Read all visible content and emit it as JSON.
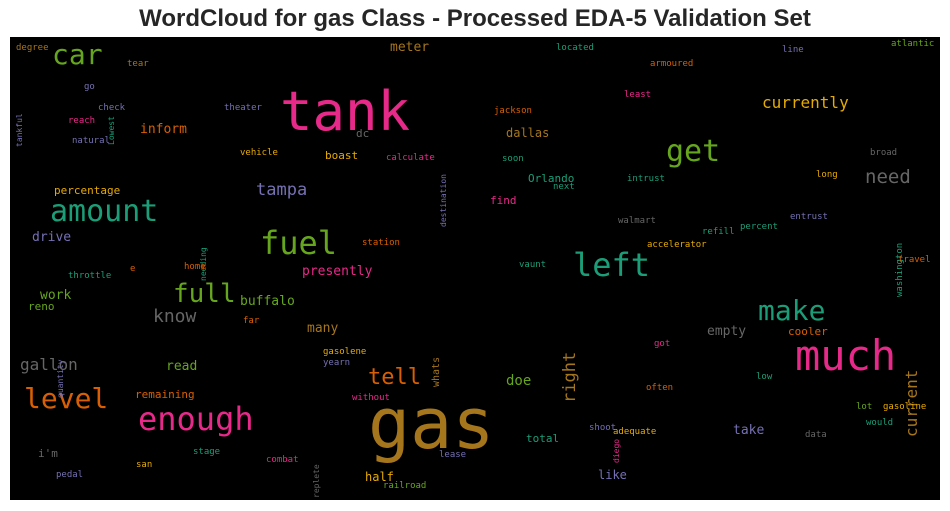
{
  "title": "WordCloud for gas Class - Processed EDA-5 Validation Set",
  "colors": {
    "background": "#000000",
    "title_text": "#262626",
    "pink": "#e7298a",
    "ochre": "#a6761d",
    "green": "#66a61e",
    "teal": "#1b9e77",
    "orange": "#d95f02",
    "purple": "#7570b3",
    "gold": "#e6ab02",
    "gray": "#666666"
  },
  "words": [
    {
      "text": "tank",
      "color": "#e7298a"
    },
    {
      "text": "gas",
      "color": "#a6761d"
    },
    {
      "text": "much",
      "color": "#e7298a"
    },
    {
      "text": "fuel",
      "color": "#66a61e"
    },
    {
      "text": "left",
      "color": "#1b9e77"
    },
    {
      "text": "enough",
      "color": "#e7298a"
    },
    {
      "text": "amount",
      "color": "#1b9e77"
    },
    {
      "text": "level",
      "color": "#d95f02"
    },
    {
      "text": "car",
      "color": "#66a61e"
    },
    {
      "text": "get",
      "color": "#66a61e"
    },
    {
      "text": "make",
      "color": "#1b9e77"
    },
    {
      "text": "full",
      "color": "#66a61e"
    },
    {
      "text": "tell",
      "color": "#d95f02"
    },
    {
      "text": "need",
      "color": "#666666"
    },
    {
      "text": "currently",
      "color": "#e6ab02"
    },
    {
      "text": "current",
      "color": "#a6761d"
    },
    {
      "text": "right",
      "color": "#a6761d"
    },
    {
      "text": "know",
      "color": "#666666"
    },
    {
      "text": "gallon",
      "color": "#666666"
    },
    {
      "text": "tampa",
      "color": "#7570b3"
    },
    {
      "text": "inform",
      "color": "#d95f02"
    },
    {
      "text": "meter",
      "color": "#a6761d"
    },
    {
      "text": "presently",
      "color": "#e7298a"
    },
    {
      "text": "doe",
      "color": "#66a61e"
    },
    {
      "text": "read",
      "color": "#66a61e"
    },
    {
      "text": "drive",
      "color": "#7570b3"
    },
    {
      "text": "work",
      "color": "#66a61e"
    },
    {
      "text": "many",
      "color": "#a6761d"
    },
    {
      "text": "empty",
      "color": "#666666"
    },
    {
      "text": "take",
      "color": "#7570b3"
    },
    {
      "text": "buffalo",
      "color": "#66a61e"
    },
    {
      "text": "dallas",
      "color": "#a6761d"
    },
    {
      "text": "boast",
      "color": "#e6ab02"
    },
    {
      "text": "percentage",
      "color": "#e6ab02"
    },
    {
      "text": "cooler",
      "color": "#d95f02"
    },
    {
      "text": "Orlando",
      "color": "#1b9e77"
    },
    {
      "text": "find",
      "color": "#e7298a"
    },
    {
      "text": "remaining",
      "color": "#d95f02"
    },
    {
      "text": "half",
      "color": "#e6ab02"
    },
    {
      "text": "total",
      "color": "#1b9e77"
    },
    {
      "text": "like",
      "color": "#7570b3"
    },
    {
      "text": "i'm",
      "color": "#666666"
    },
    {
      "text": "dc",
      "color": "#666666"
    },
    {
      "text": "reno",
      "color": "#66a61e"
    },
    {
      "text": "whats",
      "color": "#a6761d"
    },
    {
      "text": "degree",
      "color": "#a6761d"
    },
    {
      "text": "tear",
      "color": "#a6761d"
    },
    {
      "text": "located",
      "color": "#1b9e77"
    },
    {
      "text": "line",
      "color": "#7570b3"
    },
    {
      "text": "atlantic",
      "color": "#66a61e"
    },
    {
      "text": "armoured",
      "color": "#d95f02"
    },
    {
      "text": "go",
      "color": "#7570b3"
    },
    {
      "text": "Lowest",
      "color": "#1b9e77"
    },
    {
      "text": "tankful",
      "color": "#7570b3"
    },
    {
      "text": "check",
      "color": "#7570b3"
    },
    {
      "text": "theater",
      "color": "#7570b3"
    },
    {
      "text": "least",
      "color": "#e7298a"
    },
    {
      "text": "jackson",
      "color": "#d95f02"
    },
    {
      "text": "reach",
      "color": "#e7298a"
    },
    {
      "text": "natural",
      "color": "#7570b3"
    },
    {
      "text": "destination",
      "color": "#7570b3"
    },
    {
      "text": "vehicle",
      "color": "#e6ab02"
    },
    {
      "text": "calculate",
      "color": "#e7298a"
    },
    {
      "text": "soon",
      "color": "#1b9e77"
    },
    {
      "text": "broad",
      "color": "#666666"
    },
    {
      "text": "long",
      "color": "#e6ab02"
    },
    {
      "text": "next",
      "color": "#1b9e77"
    },
    {
      "text": "intrust",
      "color": "#1b9e77"
    },
    {
      "text": "needing",
      "color": "#1b9e77"
    },
    {
      "text": "walmart",
      "color": "#666666"
    },
    {
      "text": "washington",
      "color": "#1b9e77"
    },
    {
      "text": "entrust",
      "color": "#7570b3"
    },
    {
      "text": "percent",
      "color": "#1b9e77"
    },
    {
      "text": "refill",
      "color": "#1b9e77"
    },
    {
      "text": "station",
      "color": "#d95f02"
    },
    {
      "text": "accelerator",
      "color": "#e6ab02"
    },
    {
      "text": "throttle",
      "color": "#1b9e77"
    },
    {
      "text": "e",
      "color": "#d95f02"
    },
    {
      "text": "home",
      "color": "#d95f02"
    },
    {
      "text": "vaunt",
      "color": "#1b9e77"
    },
    {
      "text": "travel",
      "color": "#d95f02"
    },
    {
      "text": "far",
      "color": "#d95f02"
    },
    {
      "text": "quantity",
      "color": "#7570b3"
    },
    {
      "text": "got",
      "color": "#e7298a"
    },
    {
      "text": "gasolene",
      "color": "#e6ab02"
    },
    {
      "text": "yearn",
      "color": "#7570b3"
    },
    {
      "text": "low",
      "color": "#1b9e77"
    },
    {
      "text": "often",
      "color": "#d95f02"
    },
    {
      "text": "diego",
      "color": "#e7298a"
    },
    {
      "text": "without",
      "color": "#e7298a"
    },
    {
      "text": "lot",
      "color": "#66a61e"
    },
    {
      "text": "gasoline",
      "color": "#e6ab02"
    },
    {
      "text": "replete",
      "color": "#666666"
    },
    {
      "text": "shoot",
      "color": "#7570b3"
    },
    {
      "text": "adequate",
      "color": "#e6ab02"
    },
    {
      "text": "would",
      "color": "#1b9e77"
    },
    {
      "text": "data",
      "color": "#666666"
    },
    {
      "text": "stage",
      "color": "#1b9e77"
    },
    {
      "text": "lease",
      "color": "#7570b3"
    },
    {
      "text": "combat",
      "color": "#e7298a"
    },
    {
      "text": "san",
      "color": "#e6ab02"
    },
    {
      "text": "pedal",
      "color": "#7570b3"
    },
    {
      "text": "railroad",
      "color": "#66a61e"
    }
  ]
}
